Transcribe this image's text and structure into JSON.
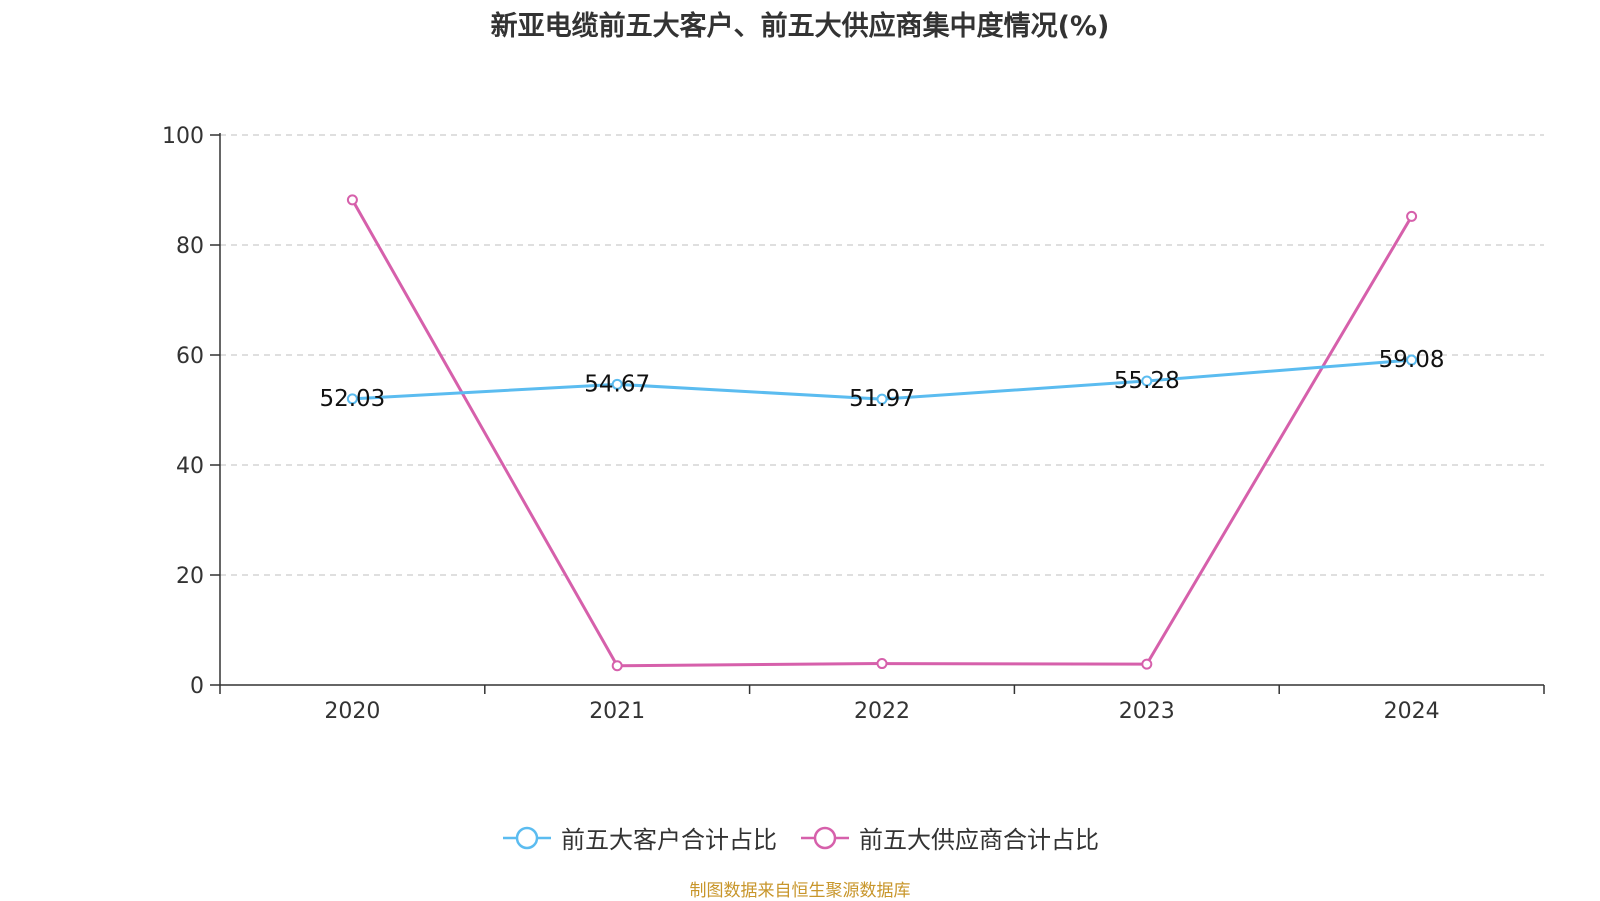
{
  "chart_data": {
    "type": "line",
    "title": "新亚电缆前五大客户、前五大供应商集中度情况(%)",
    "xlabel": "",
    "ylabel": "",
    "categories": [
      "2020",
      "2021",
      "2022",
      "2023",
      "2024"
    ],
    "ylim": [
      0,
      100
    ],
    "yticks": [
      0,
      20,
      40,
      60,
      80,
      100
    ],
    "grid": true,
    "legend_position": "bottom",
    "series": [
      {
        "name": "前五大客户合计占比",
        "color": "#5bbcf0",
        "values": [
          52.03,
          54.67,
          51.97,
          55.28,
          59.08
        ],
        "show_labels": true
      },
      {
        "name": "前五大供应商合计占比",
        "color": "#d660ab",
        "values": [
          88.2,
          3.5,
          3.9,
          3.8,
          85.2
        ],
        "show_labels": false
      }
    ]
  },
  "source_note": "制图数据来自恒生聚源数据库"
}
